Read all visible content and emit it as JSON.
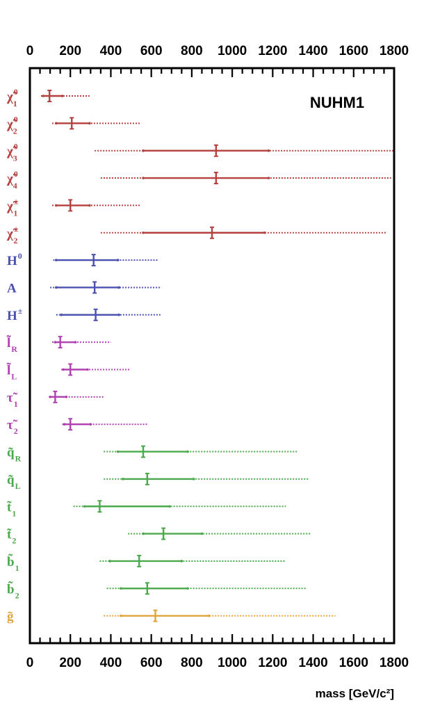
{
  "chart_data": {
    "type": "interval",
    "title": "NUHM1",
    "xlabel": "mass [GeV/c²]",
    "xlim": [
      0,
      1800
    ],
    "xticks": [
      0,
      200,
      400,
      600,
      800,
      1000,
      1200,
      1400,
      1600,
      1800
    ],
    "colors": {
      "neutralino": "#b5403e",
      "higgs": "#4a4fb0",
      "slepton": "#b040b0",
      "squark": "#4aa94a",
      "gluino": "#e0a43a"
    },
    "particles": [
      {
        "main": "χ̃",
        "sup": "0",
        "sub": "1",
        "group": "neutralino",
        "best": 97,
        "inner": [
          65,
          160
        ],
        "outer": [
          55,
          295
        ]
      },
      {
        "main": "χ̃",
        "sup": "0",
        "sub": "2",
        "group": "neutralino",
        "best": 207,
        "inner": [
          130,
          295
        ],
        "outer": [
          110,
          550
        ]
      },
      {
        "main": "χ̃",
        "sup": "0",
        "sub": "3",
        "group": "neutralino",
        "best": 920,
        "inner": [
          560,
          1180
        ],
        "outer": [
          320,
          1800
        ]
      },
      {
        "main": "χ̃",
        "sup": "0",
        "sub": "4",
        "group": "neutralino",
        "best": 920,
        "inner": [
          560,
          1180
        ],
        "outer": [
          350,
          1785
        ]
      },
      {
        "main": "χ̃",
        "sup": "±",
        "sub": "1",
        "group": "neutralino",
        "best": 200,
        "inner": [
          130,
          295
        ],
        "outer": [
          110,
          545
        ]
      },
      {
        "main": "χ̃",
        "sup": "±",
        "sub": "2",
        "group": "neutralino",
        "best": 900,
        "inner": [
          560,
          1160
        ],
        "outer": [
          350,
          1765
        ]
      },
      {
        "main": "H",
        "sup": "0",
        "sub": "",
        "group": "higgs",
        "best": 315,
        "inner": [
          130,
          435
        ],
        "outer": [
          115,
          635
        ]
      },
      {
        "main": "A",
        "sup": "",
        "sub": "",
        "group": "higgs",
        "best": 320,
        "inner": [
          130,
          440
        ],
        "outer": [
          100,
          650
        ]
      },
      {
        "main": "H",
        "sup": "±",
        "sub": "",
        "group": "higgs",
        "best": 325,
        "inner": [
          155,
          440
        ],
        "outer": [
          130,
          645
        ]
      },
      {
        "main": "l̃",
        "sup": "",
        "sub": "R",
        "group": "slepton",
        "best": 150,
        "inner": [
          125,
          225
        ],
        "outer": [
          110,
          400
        ]
      },
      {
        "main": "l̃",
        "sup": "",
        "sub": "L",
        "group": "slepton",
        "best": 200,
        "inner": [
          165,
          285
        ],
        "outer": [
          155,
          495
        ]
      },
      {
        "main": "τ̃",
        "sup": "",
        "sub": "1",
        "group": "slepton",
        "best": 125,
        "inner": [
          100,
          180
        ],
        "outer": [
          95,
          370
        ]
      },
      {
        "main": "τ̃",
        "sup": "",
        "sub": "2",
        "group": "slepton",
        "best": 200,
        "inner": [
          170,
          300
        ],
        "outer": [
          160,
          580
        ]
      },
      {
        "main": "q̃",
        "sup": "",
        "sub": "R",
        "group": "squark",
        "best": 560,
        "inner": [
          435,
          780
        ],
        "outer": [
          365,
          1320
        ]
      },
      {
        "main": "q̃",
        "sup": "",
        "sub": "L",
        "group": "squark",
        "best": 580,
        "inner": [
          460,
          810
        ],
        "outer": [
          365,
          1380
        ]
      },
      {
        "main": "t̃",
        "sup": "",
        "sub": "1",
        "group": "squark",
        "best": 345,
        "inner": [
          270,
          690
        ],
        "outer": [
          215,
          1265
        ]
      },
      {
        "main": "t̃",
        "sup": "",
        "sub": "2",
        "group": "squark",
        "best": 660,
        "inner": [
          560,
          850
        ],
        "outer": [
          485,
          1385
        ]
      },
      {
        "main": "b̃",
        "sup": "",
        "sub": "1",
        "group": "squark",
        "best": 540,
        "inner": [
          395,
          750
        ],
        "outer": [
          345,
          1265
        ]
      },
      {
        "main": "b̃",
        "sup": "",
        "sub": "2",
        "group": "squark",
        "best": 580,
        "inner": [
          450,
          780
        ],
        "outer": [
          380,
          1370
        ]
      },
      {
        "main": "g̃",
        "sup": "",
        "sub": "",
        "group": "gluino",
        "best": 620,
        "inner": [
          450,
          885
        ],
        "outer": [
          365,
          1510
        ]
      }
    ]
  }
}
